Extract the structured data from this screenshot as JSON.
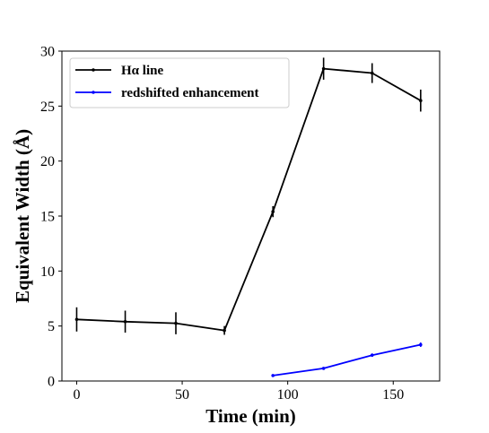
{
  "chart_data": {
    "type": "line",
    "title": "",
    "xlabel": "Time (min)",
    "ylabel": "Equivalent Width (Å)",
    "xlim": [
      -7,
      172
    ],
    "ylim": [
      0,
      30
    ],
    "xticks": [
      0,
      50,
      100,
      150
    ],
    "yticks": [
      0,
      5,
      10,
      15,
      20,
      25,
      30
    ],
    "grid": false,
    "legend_position": "top-left",
    "series": [
      {
        "name": "Hα line",
        "color": "#000000",
        "x": [
          0,
          23,
          47,
          70,
          93,
          117,
          140,
          163
        ],
        "y": [
          5.6,
          5.4,
          5.25,
          4.6,
          15.4,
          28.4,
          28.0,
          25.5
        ],
        "yerr": [
          1.1,
          1.0,
          1.0,
          0.4,
          0.5,
          1.0,
          0.9,
          1.0
        ]
      },
      {
        "name": "redshifted enhancement",
        "color": "#0000ff",
        "x": [
          93,
          117,
          140,
          163
        ],
        "y": [
          0.5,
          1.15,
          2.35,
          3.3
        ],
        "yerr": [
          0.1,
          0.1,
          0.15,
          0.2
        ]
      }
    ]
  }
}
